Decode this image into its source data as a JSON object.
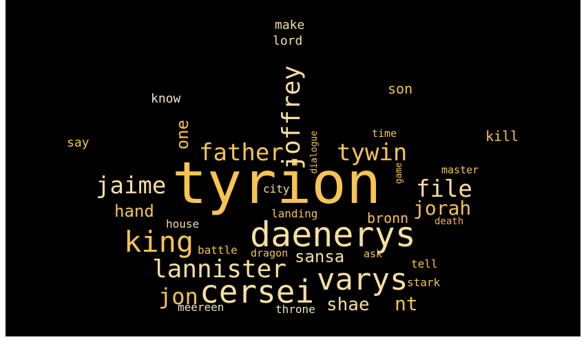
{
  "palette": {
    "background": "#000000",
    "gold": "#f5c451",
    "light": "#f7dfa0",
    "orange": "#f2b43c",
    "cream": "#efe3c2"
  },
  "words": [
    {
      "text": "tyrion",
      "color": "gold"
    },
    {
      "text": "daenerys",
      "color": "light"
    },
    {
      "text": "cersei",
      "color": "light"
    },
    {
      "text": "varys",
      "color": "light"
    },
    {
      "text": "king",
      "color": "gold"
    },
    {
      "text": "lannister",
      "color": "light"
    },
    {
      "text": "joffrey",
      "color": "light"
    },
    {
      "text": "father",
      "color": "gold"
    },
    {
      "text": "tywin",
      "color": "gold"
    },
    {
      "text": "jaime",
      "color": "light"
    },
    {
      "text": "file",
      "color": "light"
    },
    {
      "text": "jorah",
      "color": "gold"
    },
    {
      "text": "jon",
      "color": "gold"
    },
    {
      "text": "nt",
      "color": "gold"
    },
    {
      "text": "shae",
      "color": "light"
    },
    {
      "text": "sansa",
      "color": "light"
    },
    {
      "text": "hand",
      "color": "gold"
    },
    {
      "text": "one",
      "color": "gold"
    },
    {
      "text": "bronn",
      "color": "gold"
    },
    {
      "text": "kill",
      "color": "gold"
    },
    {
      "text": "son",
      "color": "gold"
    },
    {
      "text": "know",
      "color": "cream"
    },
    {
      "text": "say",
      "color": "gold"
    },
    {
      "text": "make",
      "color": "light"
    },
    {
      "text": "lord",
      "color": "light"
    },
    {
      "text": "time",
      "color": "gold"
    },
    {
      "text": "master",
      "color": "gold"
    },
    {
      "text": "city",
      "color": "light"
    },
    {
      "text": "landing",
      "color": "gold"
    },
    {
      "text": "house",
      "color": "light"
    },
    {
      "text": "battle",
      "color": "gold"
    },
    {
      "text": "dragon",
      "color": "gold"
    },
    {
      "text": "ask",
      "color": "gold"
    },
    {
      "text": "tell",
      "color": "gold"
    },
    {
      "text": "stark",
      "color": "gold"
    },
    {
      "text": "death",
      "color": "orange"
    },
    {
      "text": "meereen",
      "color": "cream"
    },
    {
      "text": "throne",
      "color": "cream"
    },
    {
      "text": "dialogue",
      "color": "gold"
    },
    {
      "text": "game",
      "color": "gold"
    }
  ]
}
